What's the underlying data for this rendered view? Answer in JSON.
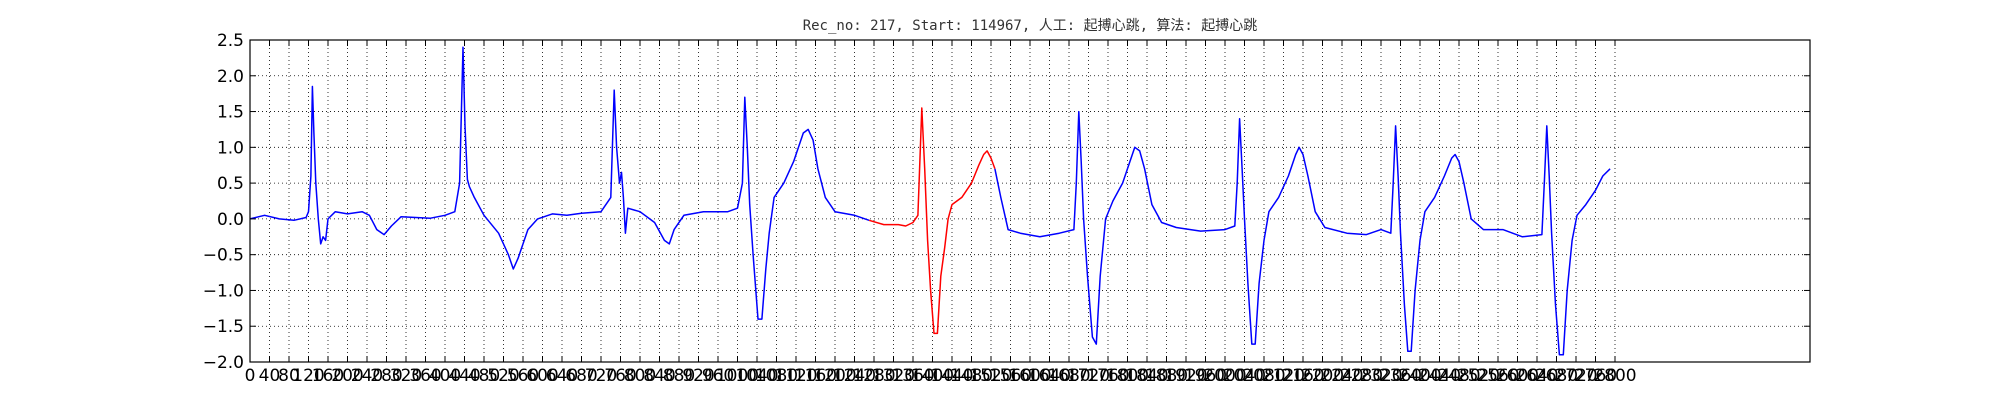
{
  "chart_data": {
    "type": "line",
    "title": "Rec_no: 217, Start: 114967, 人工: 起搏心跳, 算法: 起搏心跳",
    "xlabel": "",
    "ylabel": "",
    "xlim": [
      0,
      3200
    ],
    "ylim": [
      -2.0,
      2.5
    ],
    "grid": true,
    "grid_style": "dotted",
    "x_ticks": [
      0,
      40,
      80,
      120,
      160,
      200,
      240,
      280,
      320,
      360,
      400,
      440,
      480,
      520,
      560,
      600,
      640,
      680,
      720,
      760,
      800,
      840,
      880,
      920,
      960,
      1000,
      1040,
      1080,
      1120,
      1160,
      1200,
      1240,
      1280,
      1320,
      1360,
      1400,
      1440,
      1480,
      1520,
      1560,
      1600,
      1640,
      1680,
      1720,
      1760,
      1800,
      1840,
      1880,
      1920,
      1960,
      2000,
      2040,
      2080,
      2120,
      2160,
      2200,
      2240,
      2280,
      2320,
      2360,
      2400,
      2440,
      2480,
      2520,
      2560,
      2600,
      2640,
      2680,
      2720,
      2760,
      2800
    ],
    "x_tick_labels": [
      "0",
      "40",
      "80",
      "120",
      "160",
      "200",
      "240",
      "280",
      "320",
      "360",
      "400",
      "440",
      "480",
      "520",
      "560",
      "600",
      "640",
      "680",
      "720",
      "760",
      "800",
      "840",
      "880",
      "920",
      "960",
      "1000",
      "1040",
      "1080",
      "1120",
      "1160",
      "1200",
      "1240",
      "1280",
      "1320",
      "1360",
      "1400",
      "1440",
      "1480",
      "1520",
      "1560",
      "1600",
      "1640",
      "1680",
      "1720",
      "1760",
      "1800",
      "1840",
      "1880",
      "1920",
      "1960",
      "2000",
      "2040",
      "2080",
      "2120",
      "2160",
      "2200",
      "2240",
      "2280",
      "2320",
      "2360",
      "2400",
      "2440",
      "2480",
      "2520",
      "2560",
      "2600",
      "2640",
      "2680",
      "2720",
      "2760",
      "2800"
    ],
    "y_ticks": [
      -2.0,
      -1.5,
      -1.0,
      -0.5,
      0.0,
      0.5,
      1.0,
      1.5,
      2.0,
      2.5
    ],
    "y_tick_labels": [
      "−2.0",
      "−1.5",
      "−1.0",
      "−0.5",
      "0.0",
      "0.5",
      "1.0",
      "1.5",
      "2.0",
      "2.5"
    ],
    "series": [
      {
        "color": "#0000ff",
        "points": [
          [
            0,
            0
          ],
          [
            30,
            0.05
          ],
          [
            60,
            0.0
          ],
          [
            90,
            -0.02
          ],
          [
            115,
            0.02
          ],
          [
            120,
            0.1
          ],
          [
            125,
            0.6
          ],
          [
            128,
            1.85
          ],
          [
            131,
            1.2
          ],
          [
            135,
            0.5
          ],
          [
            140,
            0
          ],
          [
            145,
            -0.35
          ],
          [
            150,
            -0.25
          ],
          [
            155,
            -0.3
          ],
          [
            160,
            0.0
          ],
          [
            175,
            0.1
          ],
          [
            200,
            0.07
          ],
          [
            230,
            0.1
          ],
          [
            245,
            0.05
          ],
          [
            260,
            -0.15
          ],
          [
            275,
            -0.22
          ],
          [
            290,
            -0.1
          ],
          [
            310,
            0.03
          ],
          [
            340,
            0.02
          ],
          [
            370,
            0.01
          ],
          [
            400,
            0.05
          ],
          [
            420,
            0.1
          ],
          [
            430,
            0.5
          ],
          [
            437,
            2.4
          ],
          [
            441,
            1.3
          ],
          [
            446,
            0.55
          ],
          [
            450,
            0.45
          ],
          [
            460,
            0.3
          ],
          [
            480,
            0.05
          ],
          [
            510,
            -0.2
          ],
          [
            530,
            -0.5
          ],
          [
            540,
            -0.7
          ],
          [
            550,
            -0.55
          ],
          [
            570,
            -0.15
          ],
          [
            590,
            0.0
          ],
          [
            620,
            0.07
          ],
          [
            650,
            0.05
          ],
          [
            680,
            0.08
          ],
          [
            720,
            0.1
          ],
          [
            740,
            0.3
          ],
          [
            747,
            1.8
          ],
          [
            752,
            1.0
          ],
          [
            758,
            0.5
          ],
          [
            762,
            0.65
          ],
          [
            766,
            0.3
          ],
          [
            770,
            -0.2
          ],
          [
            775,
            0.15
          ],
          [
            800,
            0.1
          ],
          [
            830,
            -0.05
          ],
          [
            850,
            -0.3
          ],
          [
            860,
            -0.35
          ],
          [
            870,
            -0.15
          ],
          [
            890,
            0.05
          ],
          [
            930,
            0.1
          ],
          [
            980,
            0.1
          ],
          [
            1000,
            0.15
          ],
          [
            1010,
            0.5
          ],
          [
            1015,
            1.7
          ],
          [
            1020,
            1.0
          ],
          [
            1025,
            0.2
          ],
          [
            1032,
            -0.5
          ],
          [
            1042,
            -1.4
          ],
          [
            1050,
            -1.4
          ],
          [
            1058,
            -0.7
          ],
          [
            1065,
            -0.2
          ],
          [
            1075,
            0.3
          ],
          [
            1095,
            0.5
          ],
          [
            1115,
            0.8
          ],
          [
            1135,
            1.2
          ],
          [
            1145,
            1.25
          ],
          [
            1155,
            1.1
          ],
          [
            1165,
            0.7
          ],
          [
            1180,
            0.3
          ],
          [
            1200,
            0.1
          ],
          [
            1240,
            0.05
          ],
          [
            1270,
            -0.02
          ]
        ]
      },
      {
        "color": "#ff0000",
        "points": [
          [
            1270,
            -0.02
          ],
          [
            1300,
            -0.08
          ],
          [
            1330,
            -0.08
          ],
          [
            1345,
            -0.1
          ],
          [
            1360,
            -0.05
          ],
          [
            1370,
            0.05
          ],
          [
            1378,
            1.55
          ],
          [
            1384,
            0.7
          ],
          [
            1390,
            -0.3
          ],
          [
            1396,
            -1.0
          ],
          [
            1403,
            -1.6
          ],
          [
            1410,
            -1.6
          ],
          [
            1417,
            -0.8
          ],
          [
            1425,
            -0.4
          ],
          [
            1432,
            0.0
          ],
          [
            1440,
            0.2
          ],
          [
            1460,
            0.3
          ],
          [
            1480,
            0.5
          ],
          [
            1495,
            0.75
          ],
          [
            1505,
            0.9
          ],
          [
            1512,
            0.95
          ],
          [
            1520,
            0.85
          ],
          [
            1528,
            0.7
          ]
        ]
      },
      {
        "color": "#0000ff",
        "points": [
          [
            1528,
            0.7
          ],
          [
            1540,
            0.3
          ],
          [
            1555,
            -0.15
          ],
          [
            1580,
            -0.2
          ],
          [
            1620,
            -0.25
          ],
          [
            1660,
            -0.2
          ],
          [
            1690,
            -0.15
          ],
          [
            1695,
            0.5
          ],
          [
            1700,
            1.5
          ],
          [
            1705,
            0.8
          ],
          [
            1710,
            0.0
          ],
          [
            1718,
            -0.8
          ],
          [
            1728,
            -1.65
          ],
          [
            1736,
            -1.75
          ],
          [
            1744,
            -0.8
          ],
          [
            1755,
            0.0
          ],
          [
            1770,
            0.25
          ],
          [
            1790,
            0.5
          ],
          [
            1805,
            0.8
          ],
          [
            1815,
            1.0
          ],
          [
            1825,
            0.95
          ],
          [
            1835,
            0.7
          ],
          [
            1850,
            0.2
          ],
          [
            1870,
            -0.05
          ],
          [
            1900,
            -0.12
          ],
          [
            1950,
            -0.17
          ],
          [
            2000,
            -0.15
          ],
          [
            2020,
            -0.1
          ],
          [
            2025,
            0.5
          ],
          [
            2030,
            1.4
          ],
          [
            2035,
            0.7
          ],
          [
            2040,
            0.0
          ],
          [
            2047,
            -0.9
          ],
          [
            2055,
            -1.75
          ],
          [
            2062,
            -1.75
          ],
          [
            2070,
            -0.9
          ],
          [
            2080,
            -0.3
          ],
          [
            2090,
            0.1
          ],
          [
            2110,
            0.3
          ],
          [
            2130,
            0.6
          ],
          [
            2145,
            0.9
          ],
          [
            2152,
            1.0
          ],
          [
            2160,
            0.9
          ],
          [
            2170,
            0.6
          ],
          [
            2185,
            0.1
          ],
          [
            2205,
            -0.12
          ],
          [
            2250,
            -0.2
          ],
          [
            2290,
            -0.22
          ],
          [
            2320,
            -0.15
          ],
          [
            2340,
            -0.2
          ],
          [
            2345,
            0.5
          ],
          [
            2350,
            1.3
          ],
          [
            2355,
            0.6
          ],
          [
            2360,
            -0.2
          ],
          [
            2368,
            -1.2
          ],
          [
            2375,
            -1.85
          ],
          [
            2382,
            -1.85
          ],
          [
            2390,
            -1.0
          ],
          [
            2400,
            -0.3
          ],
          [
            2410,
            0.1
          ],
          [
            2430,
            0.3
          ],
          [
            2450,
            0.6
          ],
          [
            2465,
            0.85
          ],
          [
            2472,
            0.9
          ],
          [
            2480,
            0.8
          ],
          [
            2490,
            0.5
          ],
          [
            2505,
            0.0
          ],
          [
            2530,
            -0.15
          ],
          [
            2570,
            -0.15
          ],
          [
            2610,
            -0.25
          ],
          [
            2650,
            -0.22
          ],
          [
            2655,
            0.5
          ],
          [
            2660,
            1.3
          ],
          [
            2665,
            0.6
          ],
          [
            2670,
            -0.2
          ],
          [
            2678,
            -1.2
          ],
          [
            2686,
            -1.9
          ],
          [
            2694,
            -1.9
          ],
          [
            2702,
            -1.0
          ],
          [
            2712,
            -0.3
          ],
          [
            2722,
            0.05
          ],
          [
            2740,
            0.2
          ],
          [
            2760,
            0.4
          ],
          [
            2775,
            0.6
          ],
          [
            2790,
            0.7
          ]
        ]
      }
    ]
  }
}
